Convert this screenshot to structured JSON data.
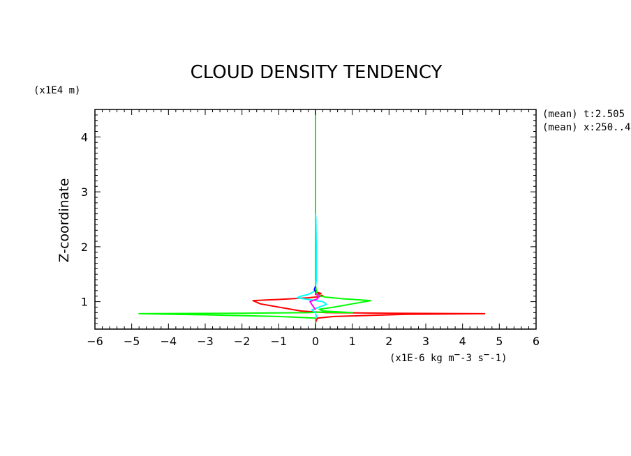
{
  "chart_data": {
    "type": "line",
    "title": "CLOUD DENSITY TENDENCY",
    "ylabel": "Z-coordinate",
    "yunit": "(x1E4 m)",
    "xunit": "(x1E-6 kg m^-3 s^-1)",
    "meta": [
      "(mean) t:2.505",
      "(mean) x:250..4"
    ],
    "xlim": [
      -6,
      6
    ],
    "ylim": [
      0.5,
      4.5
    ],
    "xticks": [
      -6,
      -5,
      -4,
      -3,
      -2,
      -1,
      0,
      1,
      2,
      3,
      4,
      5,
      6
    ],
    "xtick_labels": [
      "-6",
      "-5",
      "-4",
      "-3",
      "-2",
      "-1",
      "0",
      "1",
      "2",
      "3",
      "4",
      "5",
      "6"
    ],
    "yticks": [
      1,
      2,
      3,
      4
    ],
    "ytick_labels": [
      "1",
      "2",
      "3",
      "4"
    ],
    "series": [
      {
        "color": "#ff0000",
        "points": [
          [
            0,
            0.5
          ],
          [
            0,
            0.62
          ],
          [
            0.05,
            0.7
          ],
          [
            0.5,
            0.73
          ],
          [
            2.5,
            0.77
          ],
          [
            4.6,
            0.78
          ],
          [
            2.0,
            0.79
          ],
          [
            0.3,
            0.8
          ],
          [
            -0.4,
            0.83
          ],
          [
            -1.5,
            0.96
          ],
          [
            -1.7,
            1.02
          ],
          [
            -1.0,
            1.04
          ],
          [
            -0.2,
            1.07
          ],
          [
            0.1,
            1.09
          ],
          [
            0.2,
            1.11
          ],
          [
            0.0,
            1.13
          ],
          [
            0.15,
            1.15
          ],
          [
            0,
            1.18
          ],
          [
            0,
            1.35
          ],
          [
            0,
            4.5
          ]
        ]
      },
      {
        "color": "#00ff00",
        "points": [
          [
            0,
            0.5
          ],
          [
            0,
            0.7
          ],
          [
            -1.0,
            0.73
          ],
          [
            -3.0,
            0.76
          ],
          [
            -4.8,
            0.78
          ],
          [
            -2.0,
            0.79
          ],
          [
            -0.2,
            0.8
          ],
          [
            0.1,
            0.81
          ],
          [
            1.0,
            0.8
          ],
          [
            0.2,
            0.83
          ],
          [
            0.1,
            0.86
          ],
          [
            0.5,
            0.9
          ],
          [
            1.0,
            0.96
          ],
          [
            1.5,
            1.02
          ],
          [
            0.8,
            1.05
          ],
          [
            0.3,
            1.08
          ],
          [
            0.15,
            1.1
          ],
          [
            0.05,
            1.13
          ],
          [
            0.02,
            1.2
          ],
          [
            0,
            1.3
          ],
          [
            0,
            4.5
          ]
        ]
      },
      {
        "color": "#00ffff",
        "points": [
          [
            0,
            0.7
          ],
          [
            0.02,
            0.73
          ],
          [
            0,
            0.8
          ],
          [
            -0.1,
            0.85
          ],
          [
            0.1,
            0.9
          ],
          [
            0.3,
            0.95
          ],
          [
            0.2,
            1.0
          ],
          [
            -0.2,
            1.04
          ],
          [
            -0.5,
            1.07
          ],
          [
            -0.4,
            1.1
          ],
          [
            -0.2,
            1.13
          ],
          [
            -0.05,
            1.18
          ],
          [
            0,
            1.25
          ],
          [
            0.02,
            1.4
          ],
          [
            0.02,
            2.0
          ],
          [
            0.01,
            2.5
          ],
          [
            0,
            2.6
          ]
        ]
      },
      {
        "color": "#ff00ff",
        "points": [
          [
            0,
            0.85
          ],
          [
            -0.1,
            0.95
          ],
          [
            -0.15,
            1.0
          ],
          [
            0.05,
            1.05
          ],
          [
            0.1,
            1.1
          ],
          [
            0,
            1.15
          ],
          [
            0,
            1.2
          ]
        ]
      },
      {
        "color": "#0000ff",
        "points": [
          [
            0,
            1.18
          ],
          [
            -0.03,
            1.22
          ],
          [
            0,
            1.28
          ]
        ]
      }
    ],
    "grid": false
  }
}
